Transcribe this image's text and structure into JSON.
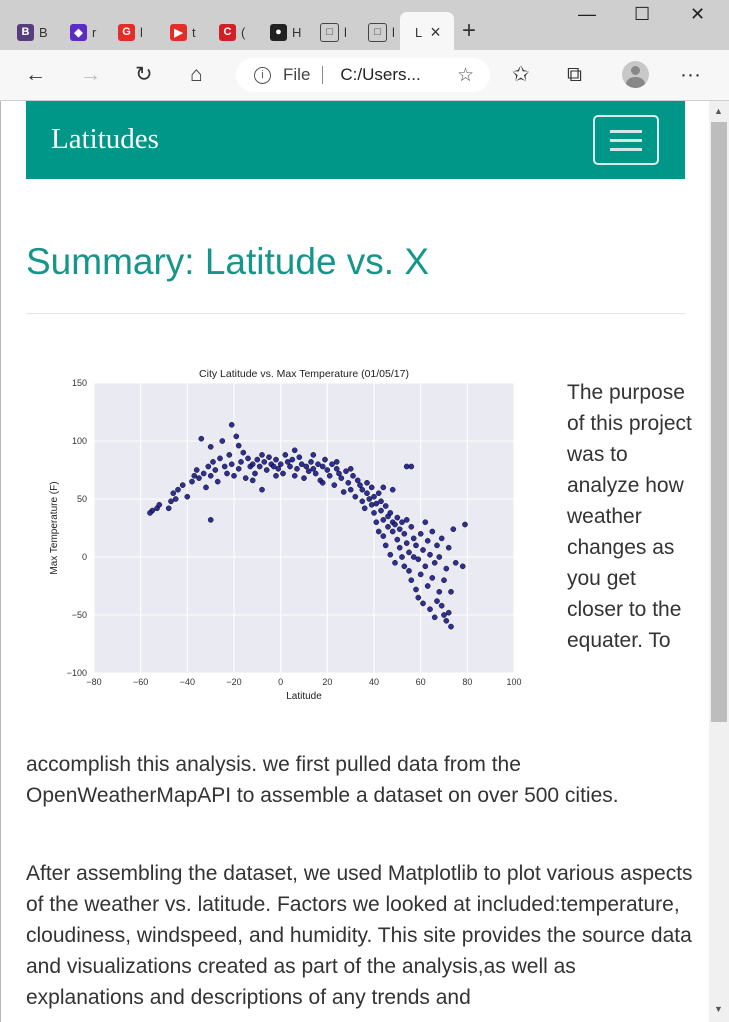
{
  "browser": {
    "tabs": [
      {
        "label": "B",
        "color": "#563d7c",
        "glyph": "B",
        "x": 17
      },
      {
        "label": "",
        "color": "#5b2bc4",
        "glyph": "",
        "x": 54
      },
      {
        "label": "r",
        "color": "#5b2bc4",
        "glyph": "◆",
        "x": 70
      },
      {
        "label": "l",
        "color": "#e52d27",
        "glyph": "G",
        "x": 118
      },
      {
        "label": "t",
        "color": "#e52d27",
        "glyph": "▶",
        "x": 170
      },
      {
        "label": "(",
        "color": "#d31f26",
        "glyph": "C",
        "x": 219
      },
      {
        "label": "H",
        "color": "#222222",
        "glyph": "●",
        "x": 270
      },
      {
        "label": "l",
        "color": "#ffffff",
        "glyph": "□",
        "x": 320
      },
      {
        "label": "l",
        "color": "#ffffff",
        "glyph": "□",
        "x": 368
      },
      {
        "label": "L",
        "color": "#f7f7f7",
        "glyph": "",
        "x": 410
      }
    ],
    "active_tab_close": "×",
    "new_tab": "+",
    "address": {
      "scheme_label": "File",
      "url": "C:/Users..."
    },
    "window": {
      "minimize": "—",
      "maximize": "☐",
      "close": "✕"
    },
    "more_label": "···"
  },
  "page": {
    "brand": "Latitudes",
    "title": "Summary: Latitude vs. X",
    "side_text": "The purpose of this project was to analyze how weather changes as you get closer to the equater. To",
    "cont_text": "accomplish this analysis. we first pulled data from the OpenWeatherMapAPI to assemble a dataset on over 500 cities.",
    "para2": "After assembling the dataset, we used Matplotlib to plot various aspects of the weather vs. latitude. Factors we looked at included:temperature, cloudiness, windspeed, and humidity. This site provides the source data and visualizations created as part of the analysis,as well as explanations and descriptions of any trends and"
  },
  "chart_data": {
    "type": "scatter",
    "title": "City Latitude vs. Max Temperature (01/05/17)",
    "xlabel": "Latitude",
    "ylabel": "Max Temperature (F)",
    "xlim": [
      -80,
      100
    ],
    "ylim": [
      -100,
      150
    ],
    "xticks": [
      -80,
      -60,
      -40,
      -20,
      0,
      20,
      40,
      60,
      80,
      100
    ],
    "yticks": [
      -100,
      -50,
      0,
      50,
      100,
      150
    ],
    "grid": true,
    "point_color": "#1a1a8c",
    "background": "#eaeaf2",
    "points": [
      [
        -55,
        40
      ],
      [
        -53,
        42
      ],
      [
        -52,
        45
      ],
      [
        -47,
        48
      ],
      [
        -46,
        55
      ],
      [
        -45,
        50
      ],
      [
        -44,
        58
      ],
      [
        -42,
        62
      ],
      [
        -40,
        52
      ],
      [
        -38,
        65
      ],
      [
        -37,
        70
      ],
      [
        -36,
        75
      ],
      [
        -35,
        68
      ],
      [
        -34,
        102
      ],
      [
        -33,
        72
      ],
      [
        -32,
        60
      ],
      [
        -31,
        78
      ],
      [
        -30,
        70
      ],
      [
        -30,
        32
      ],
      [
        -29,
        82
      ],
      [
        -28,
        75
      ],
      [
        -27,
        65
      ],
      [
        -26,
        85
      ],
      [
        -25,
        100
      ],
      [
        -24,
        78
      ],
      [
        -23,
        72
      ],
      [
        -22,
        88
      ],
      [
        -21,
        114
      ],
      [
        -21,
        80
      ],
      [
        -20,
        70
      ],
      [
        -19,
        104
      ],
      [
        -18,
        76
      ],
      [
        -17,
        82
      ],
      [
        -16,
        90
      ],
      [
        -15,
        68
      ],
      [
        -14,
        85
      ],
      [
        -13,
        78
      ],
      [
        -12,
        80
      ],
      [
        -11,
        72
      ],
      [
        -10,
        84
      ],
      [
        -9,
        78
      ],
      [
        -8,
        88
      ],
      [
        -7,
        82
      ],
      [
        -6,
        75
      ],
      [
        -5,
        86
      ],
      [
        -4,
        80
      ],
      [
        -3,
        78
      ],
      [
        -2,
        84
      ],
      [
        -1,
        76
      ],
      [
        0,
        80
      ],
      [
        1,
        72
      ],
      [
        2,
        88
      ],
      [
        3,
        82
      ],
      [
        4,
        78
      ],
      [
        5,
        84
      ],
      [
        6,
        70
      ],
      [
        7,
        76
      ],
      [
        8,
        86
      ],
      [
        9,
        80
      ],
      [
        10,
        68
      ],
      [
        11,
        78
      ],
      [
        12,
        74
      ],
      [
        13,
        82
      ],
      [
        14,
        76
      ],
      [
        15,
        72
      ],
      [
        16,
        80
      ],
      [
        17,
        66
      ],
      [
        18,
        78
      ],
      [
        19,
        84
      ],
      [
        20,
        75
      ],
      [
        21,
        70
      ],
      [
        22,
        80
      ],
      [
        23,
        62
      ],
      [
        24,
        76
      ],
      [
        25,
        72
      ],
      [
        26,
        68
      ],
      [
        27,
        56
      ],
      [
        28,
        74
      ],
      [
        29,
        64
      ],
      [
        30,
        58
      ],
      [
        31,
        70
      ],
      [
        32,
        52
      ],
      [
        33,
        66
      ],
      [
        34,
        62
      ],
      [
        35,
        48
      ],
      [
        35,
        58
      ],
      [
        36,
        42
      ],
      [
        37,
        64
      ],
      [
        37,
        55
      ],
      [
        38,
        50
      ],
      [
        39,
        45
      ],
      [
        39,
        60
      ],
      [
        40,
        38
      ],
      [
        40,
        52
      ],
      [
        41,
        30
      ],
      [
        41,
        46
      ],
      [
        42,
        55
      ],
      [
        42,
        22
      ],
      [
        43,
        40
      ],
      [
        43,
        48
      ],
      [
        44,
        32
      ],
      [
        44,
        18
      ],
      [
        45,
        44
      ],
      [
        45,
        10
      ],
      [
        46,
        35
      ],
      [
        46,
        26
      ],
      [
        47,
        38
      ],
      [
        47,
        2
      ],
      [
        48,
        22
      ],
      [
        48,
        30
      ],
      [
        49,
        -5
      ],
      [
        49,
        28
      ],
      [
        50,
        15
      ],
      [
        50,
        34
      ],
      [
        51,
        8
      ],
      [
        51,
        24
      ],
      [
        52,
        0
      ],
      [
        52,
        30
      ],
      [
        53,
        -8
      ],
      [
        53,
        20
      ],
      [
        54,
        12
      ],
      [
        54,
        32
      ],
      [
        55,
        -12
      ],
      [
        55,
        4
      ],
      [
        56,
        26
      ],
      [
        56,
        -20
      ],
      [
        57,
        16
      ],
      [
        57,
        0
      ],
      [
        58,
        -28
      ],
      [
        58,
        10
      ],
      [
        59,
        -2
      ],
      [
        59,
        -35
      ],
      [
        60,
        20
      ],
      [
        60,
        -15
      ],
      [
        61,
        -40
      ],
      [
        61,
        6
      ],
      [
        62,
        30
      ],
      [
        62,
        -8
      ],
      [
        63,
        -25
      ],
      [
        63,
        14
      ],
      [
        64,
        -45
      ],
      [
        64,
        2
      ],
      [
        65,
        22
      ],
      [
        65,
        -18
      ],
      [
        66,
        -52
      ],
      [
        66,
        -5
      ],
      [
        67,
        10
      ],
      [
        67,
        -38
      ],
      [
        68,
        -30
      ],
      [
        68,
        0
      ],
      [
        69,
        -42
      ],
      [
        69,
        16
      ],
      [
        70,
        -50
      ],
      [
        70,
        -20
      ],
      [
        71,
        -10
      ],
      [
        71,
        -55
      ],
      [
        72,
        -48
      ],
      [
        72,
        8
      ],
      [
        73,
        -60
      ],
      [
        73,
        -30
      ],
      [
        74,
        24
      ],
      [
        75,
        -5
      ],
      [
        78,
        -8
      ],
      [
        79,
        28
      ],
      [
        54,
        78
      ],
      [
        56,
        78
      ],
      [
        48,
        58
      ],
      [
        44,
        60
      ],
      [
        -56,
        38
      ],
      [
        -48,
        42
      ],
      [
        -2,
        70
      ],
      [
        6,
        92
      ],
      [
        -18,
        96
      ],
      [
        -30,
        95
      ],
      [
        14,
        88
      ],
      [
        24,
        82
      ],
      [
        30,
        76
      ],
      [
        18,
        64
      ],
      [
        -8,
        58
      ],
      [
        -12,
        66
      ]
    ]
  }
}
